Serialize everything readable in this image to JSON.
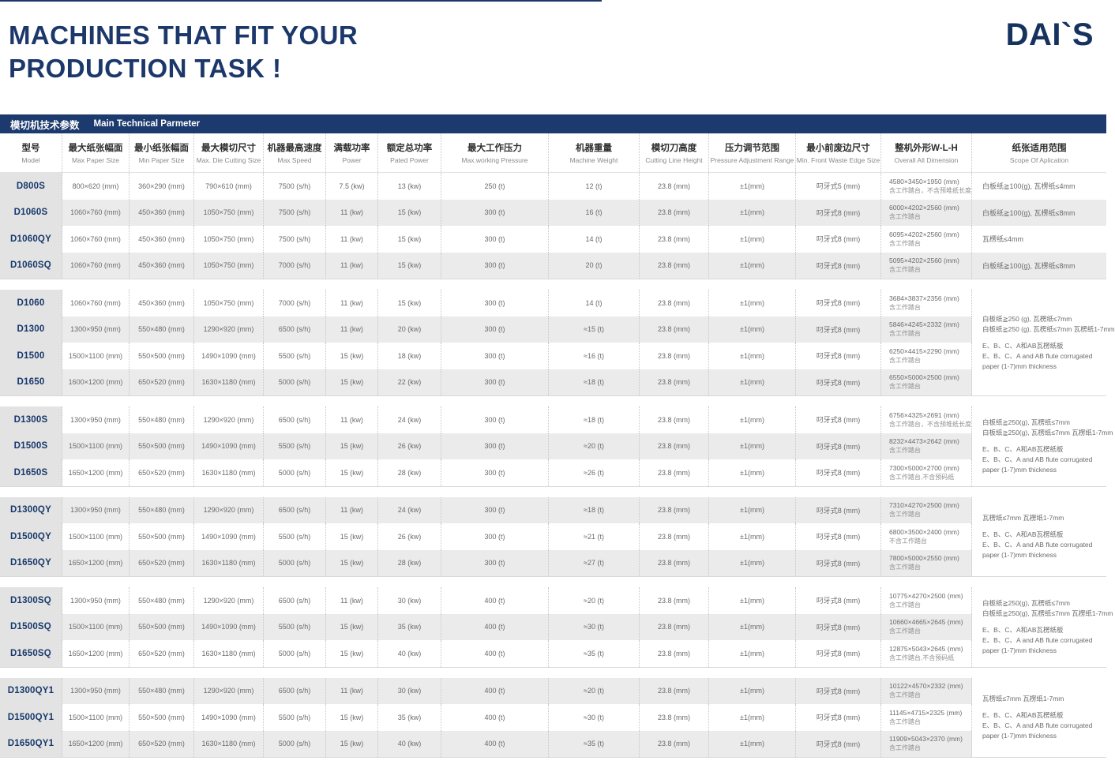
{
  "page": {
    "title_line1": "MACHINES THAT FIT YOUR",
    "title_line2": "PRODUCTION TASK !",
    "logo": "DAI`S"
  },
  "section": {
    "title_zh": "模切机技术参数",
    "title_en": "Main Technical Parmeter"
  },
  "colors": {
    "navy": "#1c3a6e",
    "stripe_gray": "#ebebeb",
    "model_column_gray": "#e3e3e3"
  },
  "columns": [
    {
      "zh": "型号",
      "en": "Model"
    },
    {
      "zh": "最大纸张幅面",
      "en": "Max Paper Size"
    },
    {
      "zh": "最小纸张幅面",
      "en": "Min Paper Size"
    },
    {
      "zh": "最大模切尺寸",
      "en": "Max. Die Cutting Size"
    },
    {
      "zh": "机器最高速度",
      "en": "Max Speed"
    },
    {
      "zh": "满载功率",
      "en": "Power"
    },
    {
      "zh": "额定总功率",
      "en": "Pated Power"
    },
    {
      "zh": "最大工作压力",
      "en": "Max.working Pressure"
    },
    {
      "zh": "机器重量",
      "en": "Machine Weight"
    },
    {
      "zh": "模切刀高度",
      "en": "Cutting Line Height"
    },
    {
      "zh": "压力调节范围",
      "en": "Pressure Adjustment Range"
    },
    {
      "zh": "最小前废边尺寸",
      "en": "Min. Front Waste Edge Size"
    },
    {
      "zh": "整机外形W-L-H",
      "en": "Overall All Dimension"
    },
    {
      "zh": "纸张适用范围",
      "en": "Scope Of Aplication"
    }
  ],
  "groups": [
    {
      "rows": [
        {
          "model": "D800S",
          "maxPaper": "800×620 (mm)",
          "minPaper": "360×290 (mm)",
          "dieCut": "790×610 (mm)",
          "speed": "7500 (s/h)",
          "power": "7.5 (kw)",
          "patedPower": "13 (kw)",
          "pressure": "250 (t)",
          "weight": "12 (t)",
          "cutHeight": "23.8 (mm)",
          "adjust": "±1(mm)",
          "wasteEdge": "叼牙式5 (mm)",
          "dim": "4580×3450×1950 (mm)",
          "dimNote": "含工作踏台，不含预堆纸长度",
          "scope": "白板纸≧100(g), 瓦楞纸≤4mm"
        },
        {
          "model": "D1060S",
          "maxPaper": "1060×760 (mm)",
          "minPaper": "450×360 (mm)",
          "dieCut": "1050×750 (mm)",
          "speed": "7500 (s/h)",
          "power": "11 (kw)",
          "patedPower": "15 (kw)",
          "pressure": "300 (t)",
          "weight": "16 (t)",
          "cutHeight": "23.8 (mm)",
          "adjust": "±1(mm)",
          "wasteEdge": "叼牙式8 (mm)",
          "dim": "6000×4202×2560 (mm)",
          "dimNote": "含工作踏台",
          "scope": "白板纸≧100(g), 瓦楞纸≤8mm"
        },
        {
          "model": "D1060QY",
          "maxPaper": "1060×760 (mm)",
          "minPaper": "450×360 (mm)",
          "dieCut": "1050×750 (mm)",
          "speed": "7500 (s/h)",
          "power": "11 (kw)",
          "patedPower": "15 (kw)",
          "pressure": "300 (t)",
          "weight": "14 (t)",
          "cutHeight": "23.8 (mm)",
          "adjust": "±1(mm)",
          "wasteEdge": "叼牙式8 (mm)",
          "dim": "6095×4202×2560 (mm)",
          "dimNote": "含工作踏台",
          "scope": "瓦楞纸≤4mm"
        },
        {
          "model": "D1060SQ",
          "maxPaper": "1060×760 (mm)",
          "minPaper": "450×360 (mm)",
          "dieCut": "1050×750 (mm)",
          "speed": "7000 (s/h)",
          "power": "11 (kw)",
          "patedPower": "15 (kw)",
          "pressure": "300 (t)",
          "weight": "20 (t)",
          "cutHeight": "23.8 (mm)",
          "adjust": "±1(mm)",
          "wasteEdge": "叼牙式8 (mm)",
          "dim": "5095×4202×2560 (mm)",
          "dimNote": "含工作踏台",
          "scope": "白板纸≧100(g), 瓦楞纸≤8mm"
        }
      ]
    },
    {
      "rows": [
        {
          "model": "D1060",
          "maxPaper": "1060×760 (mm)",
          "minPaper": "450×360 (mm)",
          "dieCut": "1050×750 (mm)",
          "speed": "7000 (s/h)",
          "power": "11 (kw)",
          "patedPower": "15 (kw)",
          "pressure": "300 (t)",
          "weight": "14 (t)",
          "cutHeight": "23.8 (mm)",
          "adjust": "±1(mm)",
          "wasteEdge": "叼牙式8 (mm)",
          "dim": "3684×3837×2356 (mm)",
          "dimNote": "含工作踏台"
        },
        {
          "model": "D1300",
          "maxPaper": "1300×950 (mm)",
          "minPaper": "550×480 (mm)",
          "dieCut": "1290×920 (mm)",
          "speed": "6500 (s/h)",
          "power": "11 (kw)",
          "patedPower": "20 (kw)",
          "pressure": "300 (t)",
          "weight": "≈15 (t)",
          "cutHeight": "23.8 (mm)",
          "adjust": "±1(mm)",
          "wasteEdge": "叼牙式8 (mm)",
          "dim": "5846×4245×2332 (mm)",
          "dimNote": "含工作踏台"
        },
        {
          "model": "D1500",
          "maxPaper": "1500×1100 (mm)",
          "minPaper": "550×500 (mm)",
          "dieCut": "1490×1090 (mm)",
          "speed": "5500 (s/h)",
          "power": "15 (kw)",
          "patedPower": "18 (kw)",
          "pressure": "300 (t)",
          "weight": "≈16 (t)",
          "cutHeight": "23.8 (mm)",
          "adjust": "±1(mm)",
          "wasteEdge": "叼牙式8 (mm)",
          "dim": "6250×4415×2290 (mm)",
          "dimNote": "含工作踏台"
        },
        {
          "model": "D1650",
          "maxPaper": "1600×1200 (mm)",
          "minPaper": "650×520 (mm)",
          "dieCut": "1630×1180 (mm)",
          "speed": "5000 (s/h)",
          "power": "15 (kw)",
          "patedPower": "22 (kw)",
          "pressure": "300 (t)",
          "weight": "≈18 (t)",
          "cutHeight": "23.8 (mm)",
          "adjust": "±1(mm)",
          "wasteEdge": "叼牙式8 (mm)",
          "dim": "6550×5000×2500 (mm)",
          "dimNote": "含工作踏台"
        }
      ],
      "scope_paragraphs": [
        [
          "白板纸≧250 (g), 瓦楞纸≤7mm",
          "白板纸≧250 (g), 瓦楞纸≤7mm  瓦楞纸1-7mm"
        ],
        [
          "E、B、C、A和AB瓦楞纸板",
          "E、B、C、A and AB flute corrugated",
          "paper (1-7)mm thickness"
        ]
      ]
    },
    {
      "rows": [
        {
          "model": "D1300S",
          "maxPaper": "1300×950 (mm)",
          "minPaper": "550×480 (mm)",
          "dieCut": "1290×920 (mm)",
          "speed": "6500 (s/h)",
          "power": "11 (kw)",
          "patedPower": "24 (kw)",
          "pressure": "300 (t)",
          "weight": "≈18 (t)",
          "cutHeight": "23.8 (mm)",
          "adjust": "±1(mm)",
          "wasteEdge": "叼牙式8 (mm)",
          "dim": "6756×4325×2691 (mm)",
          "dimNote": "含工作踏台，不含预堆纸长度"
        },
        {
          "model": "D1500S",
          "maxPaper": "1500×1100 (mm)",
          "minPaper": "550×500 (mm)",
          "dieCut": "1490×1090 (mm)",
          "speed": "5500 (s/h)",
          "power": "15 (kw)",
          "patedPower": "26 (kw)",
          "pressure": "300 (t)",
          "weight": "≈20 (t)",
          "cutHeight": "23.8 (mm)",
          "adjust": "±1(mm)",
          "wasteEdge": "叼牙式8 (mm)",
          "dim": "8232×4473×2642 (mm)",
          "dimNote": "含工作踏台"
        },
        {
          "model": "D1650S",
          "maxPaper": "1650×1200 (mm)",
          "minPaper": "650×520 (mm)",
          "dieCut": "1630×1180 (mm)",
          "speed": "5000 (s/h)",
          "power": "15 (kw)",
          "patedPower": "28 (kw)",
          "pressure": "300 (t)",
          "weight": "≈26 (t)",
          "cutHeight": "23.8 (mm)",
          "adjust": "±1(mm)",
          "wasteEdge": "叼牙式8 (mm)",
          "dim": "7300×5000×2700 (mm)",
          "dimNote": "含工作踏台,不含预码纸"
        }
      ],
      "scope_paragraphs": [
        [
          "白板纸≧250(g), 瓦楞纸≤7mm",
          "白板纸≧250(g), 瓦楞纸≤7mm 瓦楞纸1-7mm"
        ],
        [
          "E、B、C、A和AB瓦楞纸板",
          "E、B、C、A and AB flute corrugated",
          "paper (1-7)mm thickness"
        ]
      ]
    },
    {
      "rows": [
        {
          "model": "D1300QY",
          "maxPaper": "1300×950 (mm)",
          "minPaper": "550×480 (mm)",
          "dieCut": "1290×920 (mm)",
          "speed": "6500 (s/h)",
          "power": "11 (kw)",
          "patedPower": "24 (kw)",
          "pressure": "300 (t)",
          "weight": "≈18 (t)",
          "cutHeight": "23.8 (mm)",
          "adjust": "±1(mm)",
          "wasteEdge": "叼牙式8 (mm)",
          "dim": "7310×4270×2500 (mm)",
          "dimNote": "含工作踏台"
        },
        {
          "model": "D1500QY",
          "maxPaper": "1500×1100 (mm)",
          "minPaper": "550×500 (mm)",
          "dieCut": "1490×1090 (mm)",
          "speed": "5500 (s/h)",
          "power": "15 (kw)",
          "patedPower": "26 (kw)",
          "pressure": "300 (t)",
          "weight": "≈21 (t)",
          "cutHeight": "23.8 (mm)",
          "adjust": "±1(mm)",
          "wasteEdge": "叼牙式8 (mm)",
          "dim": "6800×3500×2400 (mm)",
          "dimNote": "不含工作踏台"
        },
        {
          "model": "D1650QY",
          "maxPaper": "1650×1200 (mm)",
          "minPaper": "650×520 (mm)",
          "dieCut": "1630×1180 (mm)",
          "speed": "5000 (s/h)",
          "power": "15 (kw)",
          "patedPower": "28 (kw)",
          "pressure": "300 (t)",
          "weight": "≈27 (t)",
          "cutHeight": "23.8 (mm)",
          "adjust": "±1(mm)",
          "wasteEdge": "叼牙式8 (mm)",
          "dim": "7800×5000×2550 (mm)",
          "dimNote": "含工作踏台"
        }
      ],
      "scope_paragraphs": [
        [
          "瓦楞纸≤7mm 瓦楞纸1-7mm"
        ],
        [
          "E、B、C、A和AB瓦楞纸板",
          "E、B、C、A and AB flute corrugated",
          "paper (1-7)mm thickness"
        ]
      ]
    },
    {
      "rows": [
        {
          "model": "D1300SQ",
          "maxPaper": "1300×950 (mm)",
          "minPaper": "550×480 (mm)",
          "dieCut": "1290×920 (mm)",
          "speed": "6500 (s/h)",
          "power": "11 (kw)",
          "patedPower": "30 (kw)",
          "pressure": "400 (t)",
          "weight": "≈20 (t)",
          "cutHeight": "23.8 (mm)",
          "adjust": "±1(mm)",
          "wasteEdge": "叼牙式8 (mm)",
          "dim": "10775×4270×2500 (mm)",
          "dimNote": "含工作踏台"
        },
        {
          "model": "D1500SQ",
          "maxPaper": "1500×1100 (mm)",
          "minPaper": "550×500 (mm)",
          "dieCut": "1490×1090 (mm)",
          "speed": "5500 (s/h)",
          "power": "15 (kw)",
          "patedPower": "35 (kw)",
          "pressure": "400 (t)",
          "weight": "≈30 (t)",
          "cutHeight": "23.8 (mm)",
          "adjust": "±1(mm)",
          "wasteEdge": "叼牙式8 (mm)",
          "dim": "10660×4665×2645 (mm)",
          "dimNote": "含工作踏台"
        },
        {
          "model": "D1650SQ",
          "maxPaper": "1650×1200 (mm)",
          "minPaper": "650×520 (mm)",
          "dieCut": "1630×1180 (mm)",
          "speed": "5000 (s/h)",
          "power": "15 (kw)",
          "patedPower": "40 (kw)",
          "pressure": "400 (t)",
          "weight": "≈35 (t)",
          "cutHeight": "23.8 (mm)",
          "adjust": "±1(mm)",
          "wasteEdge": "叼牙式8 (mm)",
          "dim": "12875×5043×2645 (mm)",
          "dimNote": "含工作踏台,不含预码纸"
        }
      ],
      "scope_paragraphs": [
        [
          "白板纸≧250(g), 瓦楞纸≤7mm",
          "白板纸≧250(g), 瓦楞纸≤7mm 瓦楞纸1-7mm"
        ],
        [
          "E、B、C、A和AB瓦楞纸板",
          "E、B、C、A and AB flute corrugated",
          "paper (1-7)mm thickness"
        ]
      ]
    },
    {
      "rows": [
        {
          "model": "D1300QY1",
          "maxPaper": "1300×950 (mm)",
          "minPaper": "550×480 (mm)",
          "dieCut": "1290×920 (mm)",
          "speed": "6500 (s/h)",
          "power": "11 (kw)",
          "patedPower": "30 (kw)",
          "pressure": "400 (t)",
          "weight": "≈20 (t)",
          "cutHeight": "23.8 (mm)",
          "adjust": "±1(mm)",
          "wasteEdge": "叼牙式8 (mm)",
          "dim": "10122×4570×2332 (mm)",
          "dimNote": "含工作踏台"
        },
        {
          "model": "D1500QY1",
          "maxPaper": "1500×1100 (mm)",
          "minPaper": "550×500 (mm)",
          "dieCut": "1490×1090 (mm)",
          "speed": "5500 (s/h)",
          "power": "15 (kw)",
          "patedPower": "35 (kw)",
          "pressure": "400 (t)",
          "weight": "≈30 (t)",
          "cutHeight": "23.8 (mm)",
          "adjust": "±1(mm)",
          "wasteEdge": "叼牙式8 (mm)",
          "dim": "11145×4715×2325 (mm)",
          "dimNote": "含工作踏台"
        },
        {
          "model": "D1650QY1",
          "maxPaper": "1650×1200 (mm)",
          "minPaper": "650×520 (mm)",
          "dieCut": "1630×1180 (mm)",
          "speed": "5000 (s/h)",
          "power": "15 (kw)",
          "patedPower": "40 (kw)",
          "pressure": "400 (t)",
          "weight": "≈35 (t)",
          "cutHeight": "23.8 (mm)",
          "adjust": "±1(mm)",
          "wasteEdge": "叼牙式8 (mm)",
          "dim": "11909×5043×2370 (mm)",
          "dimNote": "含工作踏台"
        }
      ],
      "scope_paragraphs": [
        [
          "瓦楞纸≤7mm 瓦楞纸1-7mm"
        ],
        [
          "E、B、C、A和AB瓦楞纸板",
          "E、B、C、A and AB flute corrugated",
          "paper (1-7)mm thickness"
        ]
      ]
    }
  ]
}
